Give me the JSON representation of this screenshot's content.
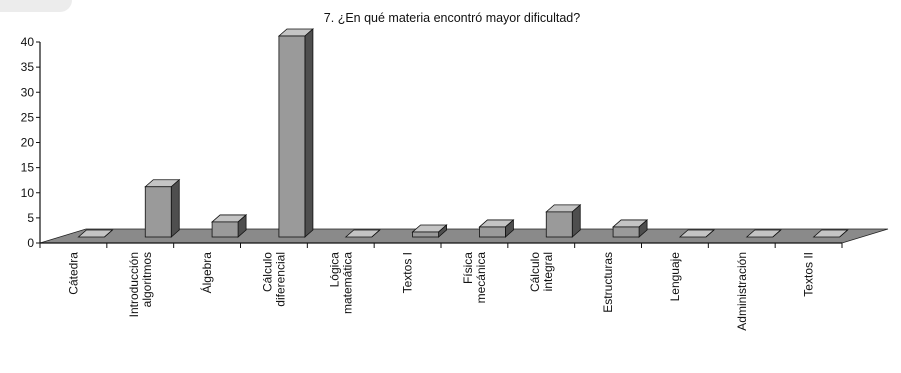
{
  "chart_data": {
    "type": "bar",
    "title": "7. ¿En qué materia encontró mayor dificultad?",
    "xlabel": "",
    "ylabel": "",
    "ylim": [
      0,
      40
    ],
    "yticks": [
      0,
      5,
      10,
      15,
      20,
      25,
      30,
      35,
      40
    ],
    "grid": false,
    "legend": "none",
    "style": "3d-columns",
    "categories": [
      [
        "Cátedra"
      ],
      [
        "Introducción",
        "algoritmos"
      ],
      [
        "Álgebra"
      ],
      [
        "Cálculo",
        "diferencial"
      ],
      [
        "Lógica",
        "matemática"
      ],
      [
        "Textos I"
      ],
      [
        "Física",
        "mecánica"
      ],
      [
        "Cálculo",
        "integral"
      ],
      [
        "Estructuras"
      ],
      [
        "Lenguaje"
      ],
      [
        "Administración"
      ],
      [
        "Textos II"
      ]
    ],
    "values": [
      0,
      10,
      3,
      40,
      0,
      1,
      2,
      5,
      2,
      0,
      0,
      0
    ],
    "colors": {
      "bar_front": "#9a9a9a",
      "bar_side": "#4e4e4e",
      "bar_top": "#c4c4c4",
      "floor": "#8a8a8a",
      "axis": "#111111"
    }
  }
}
